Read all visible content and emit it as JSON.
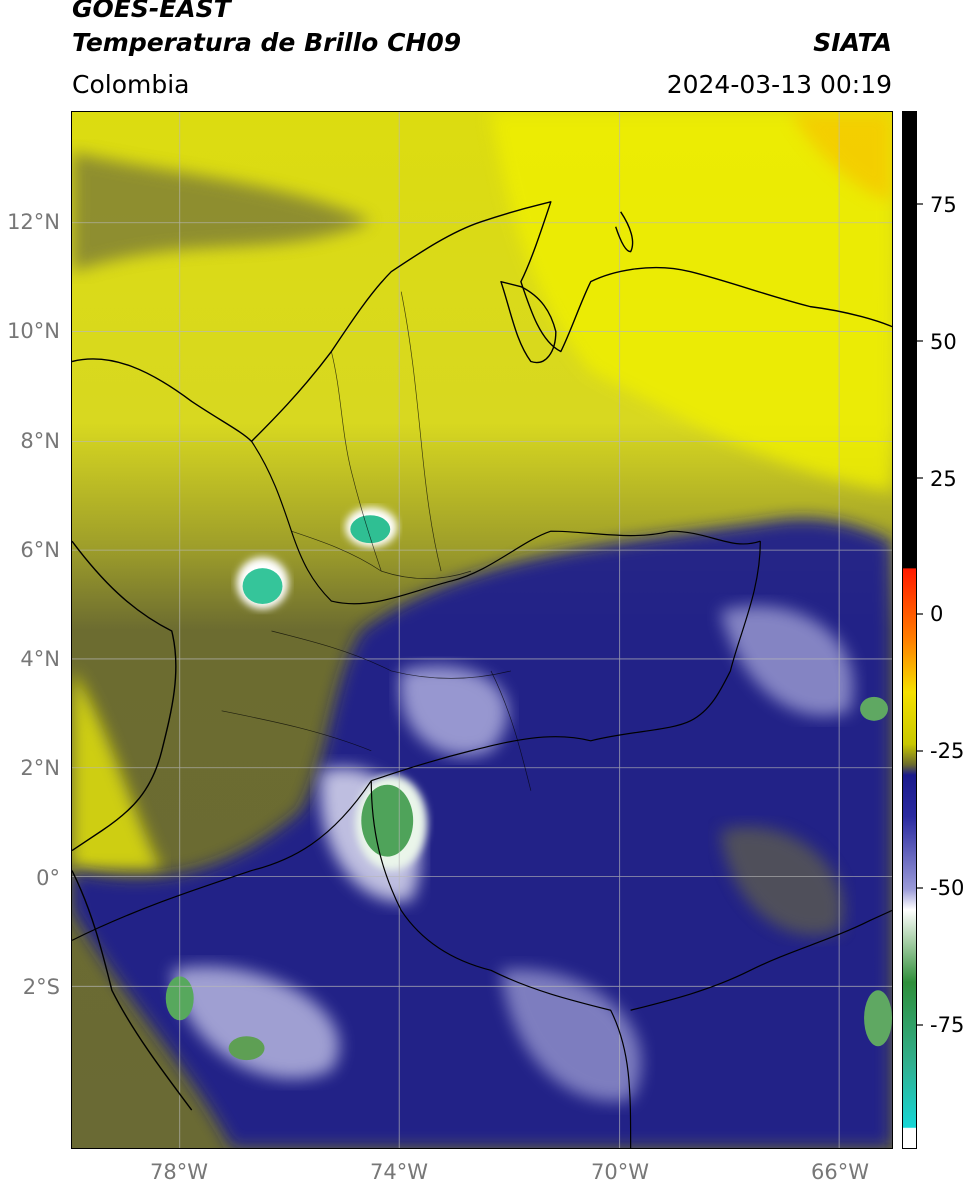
{
  "title": {
    "line1": "GOES-EAST",
    "line2": "Temperatura de Brillo CH09",
    "agency": "SIATA",
    "region": "Colombia",
    "datetime": "2024-03-13 00:19"
  },
  "axes": {
    "lat_labels": [
      "12°N",
      "10°N",
      "8°N",
      "6°N",
      "4°N",
      "2°N",
      "0°",
      "2°S"
    ],
    "lon_labels": [
      "78°W",
      "74°W",
      "70°W",
      "66°W"
    ]
  },
  "colorbar": {
    "ticks": [
      "75",
      "50",
      "25",
      "0",
      "-25",
      "-50",
      "-75"
    ],
    "colors": {
      "warm_black": "#000000",
      "red": "#ff2200",
      "orange": "#ff9900",
      "yellow": "#e6e600",
      "olive": "#6b6b2e",
      "blue": "#1a1a8c",
      "white": "#ffffff",
      "green": "#2f8f3a",
      "cyan": "#16d6d6"
    }
  }
}
